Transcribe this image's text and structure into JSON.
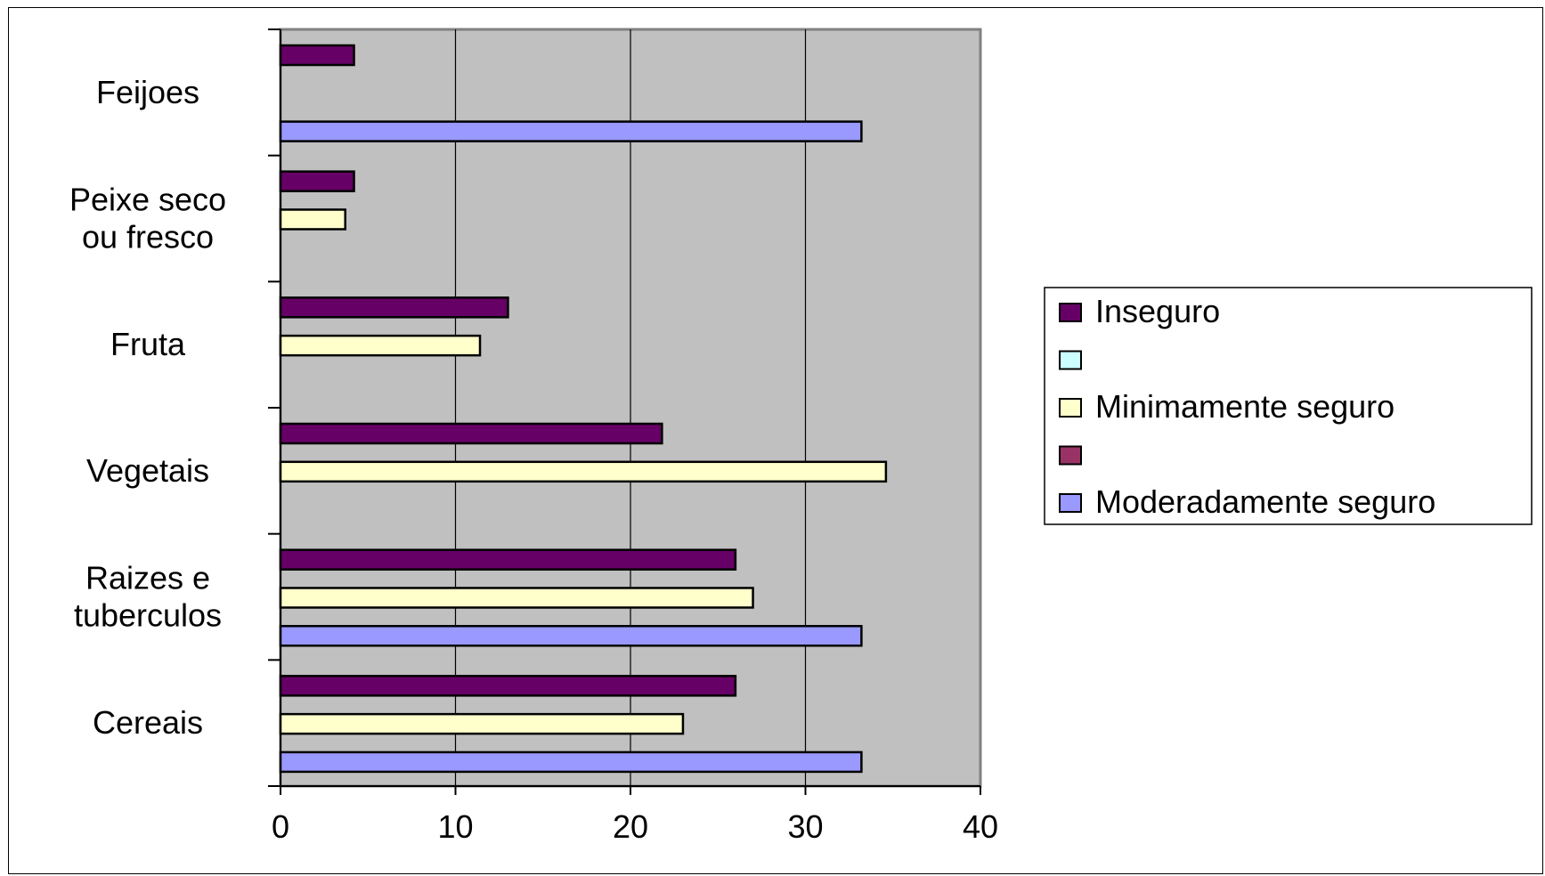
{
  "chart_data": {
    "type": "bar",
    "orientation": "horizontal",
    "categories": [
      "Cereais",
      "Raizes e tuberculos",
      "Vegetais",
      "Fruta",
      "Peixe seco ou fresco",
      "Feijoes"
    ],
    "category_lines": [
      [
        "Cereais"
      ],
      [
        "Raizes e",
        "tuberculos"
      ],
      [
        "Vegetais"
      ],
      [
        "Fruta"
      ],
      [
        "Peixe seco",
        "ou fresco"
      ],
      [
        "Feijoes"
      ]
    ],
    "series": [
      {
        "name": "Inseguro",
        "color": "#660066",
        "values": [
          26,
          26,
          21.8,
          13,
          4.2,
          4.2
        ]
      },
      {
        "name": "",
        "color": "#CCFFFF",
        "values": [
          null,
          null,
          null,
          null,
          null,
          null
        ]
      },
      {
        "name": "Minimamente seguro",
        "color": "#FFFFCC",
        "values": [
          23,
          27,
          34.6,
          11.4,
          3.7,
          null
        ]
      },
      {
        "name": "",
        "color": "#993366",
        "values": [
          null,
          null,
          null,
          null,
          null,
          null
        ]
      },
      {
        "name": "Moderadamente seguro",
        "color": "#9999FF",
        "values": [
          33.2,
          33.2,
          null,
          null,
          null,
          33.2
        ]
      }
    ],
    "xlim": [
      0,
      40
    ],
    "xticks": [
      0,
      10,
      20,
      30,
      40
    ],
    "xtick_labels": [
      "0",
      "10",
      "20",
      "30",
      "40"
    ],
    "plot_background": "#C0C0C0",
    "gridlines": true,
    "legend_position": "right",
    "title": "",
    "xlabel": "",
    "ylabel": ""
  }
}
